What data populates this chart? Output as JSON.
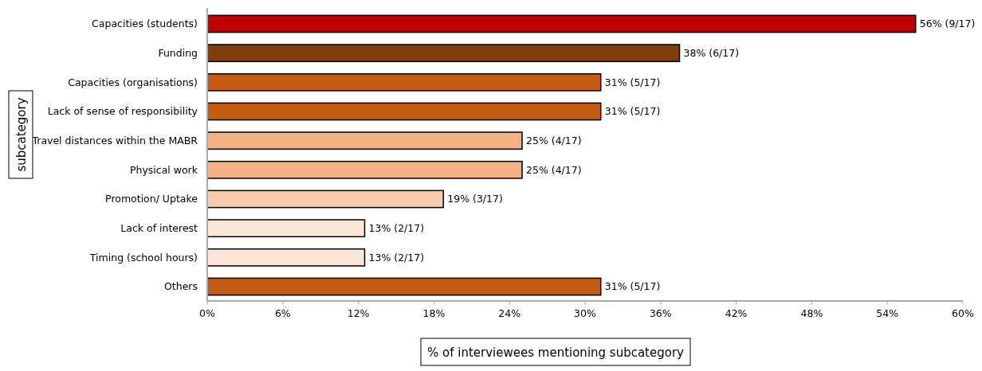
{
  "chart_data": {
    "type": "bar",
    "orientation": "horizontal",
    "xlabel": "% of interviewees mentioning subcategory",
    "ylabel": "subcategory",
    "categories": [
      "Capacities (students)",
      "Funding",
      "Capacities (organisations)",
      "Lack of sense of responsibility",
      "Travel distances within the MABR",
      "Physical work",
      "Promotion/ Uptake",
      "Lack of interest",
      "Timing (school hours)",
      "Others"
    ],
    "values": [
      56.25,
      37.5,
      31.25,
      31.25,
      25,
      25,
      18.75,
      12.5,
      12.5,
      31.25
    ],
    "colors": [
      "#c00000",
      "#843c0c",
      "#c55a11",
      "#c55a11",
      "#f4b183",
      "#f4b183",
      "#f8cbad",
      "#fbe5d6",
      "#fbe5d6",
      "#c55a11"
    ],
    "value_labels": [
      "56% (9/17)",
      "38% (6/17)",
      "31% (5/17)",
      "31% (5/17)",
      "25% (4/17)",
      "25% (4/17)",
      "19% (3/17)",
      "13% (2/17)",
      "13% (2/17)",
      "31% (5/17)"
    ],
    "xlim": [
      0,
      60
    ],
    "xticks": [
      {
        "value": 0,
        "label": "0%"
      },
      {
        "value": 6,
        "label": "6%"
      },
      {
        "value": 12,
        "label": "12%"
      },
      {
        "value": 18,
        "label": "18%"
      },
      {
        "value": 24,
        "label": "24%"
      },
      {
        "value": 30,
        "label": "30%"
      },
      {
        "value": 36,
        "label": "36%"
      },
      {
        "value": 42,
        "label": "42%"
      },
      {
        "value": 48,
        "label": "48%"
      },
      {
        "value": 54,
        "label": "54%"
      },
      {
        "value": 60,
        "label": "60%"
      }
    ],
    "grid": false
  }
}
